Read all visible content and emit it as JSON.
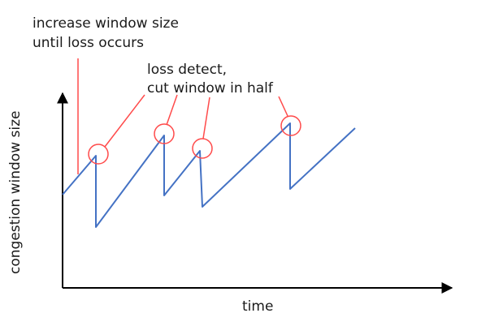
{
  "annotations": {
    "increase_line1": "increase window size",
    "increase_line2": "until loss occurs",
    "loss_line1": "loss detect,",
    "loss_line2": "cut window in half"
  },
  "axes": {
    "x_label": "time",
    "y_label": "congestion window size"
  },
  "colors": {
    "window_line": "#4472c4",
    "annotation": "#ff4b4b",
    "axis": "#000000"
  }
}
